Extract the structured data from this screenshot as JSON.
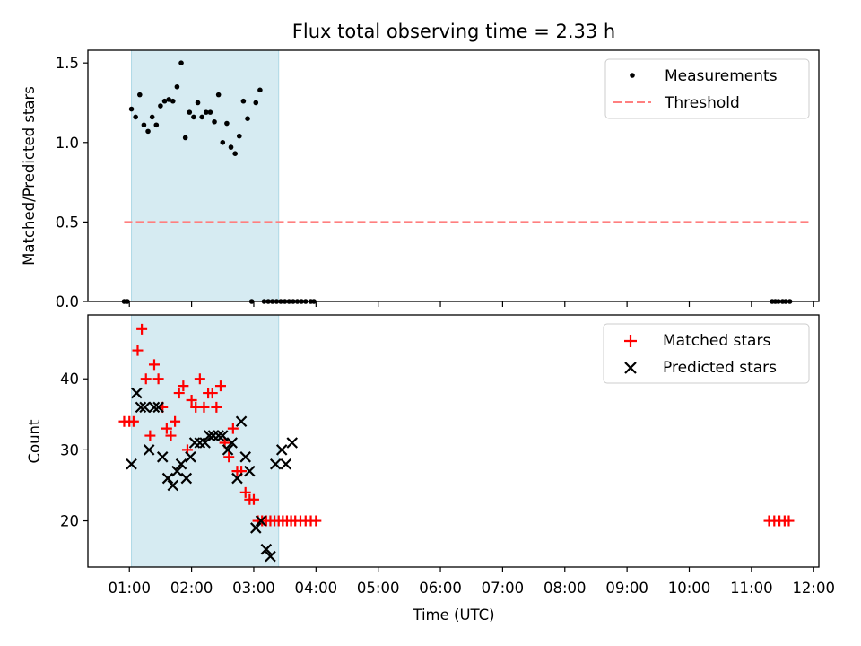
{
  "chart_data": [
    {
      "type": "scatter",
      "title": "Flux total observing time = 2.33 h",
      "xlabel": "",
      "ylabel": "Matched/Predicted stars",
      "xlim": [
        "00:20",
        "12:05"
      ],
      "ylim": [
        0,
        1.58
      ],
      "yticks": [
        "0.0",
        "0.5",
        "1.0",
        "1.5"
      ],
      "shaded_interval": [
        "01:02",
        "03:24"
      ],
      "legend": {
        "position": "top-right",
        "entries": [
          "Measurements",
          "Threshold"
        ]
      },
      "threshold": {
        "name": "Threshold",
        "value": 0.5,
        "x": [
          "00:55",
          "11:55"
        ]
      },
      "series": [
        {
          "name": "Measurements",
          "x": [
            "00:55",
            "00:58",
            "01:02",
            "01:06",
            "01:10",
            "01:14",
            "01:18",
            "01:22",
            "01:26",
            "01:30",
            "01:34",
            "01:38",
            "01:42",
            "01:46",
            "01:50",
            "01:54",
            "01:58",
            "02:02",
            "02:06",
            "02:10",
            "02:14",
            "02:18",
            "02:22",
            "02:26",
            "02:30",
            "02:34",
            "02:38",
            "02:42",
            "02:46",
            "02:50",
            "02:54",
            "02:58",
            "03:02",
            "03:06",
            "03:10",
            "03:14",
            "03:18",
            "03:22",
            "03:26",
            "03:30",
            "03:34",
            "03:38",
            "03:42",
            "03:46",
            "03:50",
            "03:55",
            "03:58",
            "11:20",
            "11:23",
            "11:26",
            "11:30",
            "11:33",
            "11:37"
          ],
          "y": [
            0,
            0,
            1.21,
            1.16,
            1.3,
            1.11,
            1.07,
            1.16,
            1.11,
            1.23,
            1.26,
            1.27,
            1.26,
            1.35,
            1.5,
            1.03,
            1.19,
            1.16,
            1.25,
            1.16,
            1.19,
            1.19,
            1.13,
            1.3,
            1,
            1.12,
            0.97,
            0.93,
            1.04,
            1.26,
            1.15,
            0,
            1.25,
            1.33,
            0,
            0,
            0,
            0,
            0,
            0,
            0,
            0,
            0,
            0,
            0,
            0,
            0,
            0,
            0,
            0,
            0,
            0,
            0
          ]
        }
      ]
    },
    {
      "type": "scatter",
      "title": "",
      "xlabel": "Time (UTC)",
      "ylabel": "Count",
      "xlim": [
        "00:20",
        "12:05"
      ],
      "ylim": [
        13.5,
        49
      ],
      "yticks": [
        "20",
        "30",
        "40"
      ],
      "xticks": [
        "01:00",
        "02:00",
        "03:00",
        "04:00",
        "05:00",
        "06:00",
        "07:00",
        "08:00",
        "09:00",
        "10:00",
        "11:00",
        "12:00"
      ],
      "shaded_interval": [
        "01:02",
        "03:24"
      ],
      "legend": {
        "position": "top-right",
        "entries": [
          "Matched stars",
          "Predicted stars"
        ]
      },
      "series": [
        {
          "name": "Matched stars",
          "color": "#ff0000",
          "marker": "plus",
          "x": [
            "00:55",
            "01:00",
            "01:04",
            "01:08",
            "01:12",
            "01:16",
            "01:20",
            "01:24",
            "01:28",
            "01:32",
            "01:36",
            "01:40",
            "01:44",
            "01:48",
            "01:52",
            "01:56",
            "02:00",
            "02:04",
            "02:08",
            "02:12",
            "02:16",
            "02:20",
            "02:24",
            "02:28",
            "02:32",
            "02:36",
            "02:40",
            "02:44",
            "02:48",
            "02:52",
            "02:56",
            "03:00",
            "03:04",
            "03:08",
            "03:12",
            "03:16",
            "03:20",
            "03:24",
            "03:28",
            "03:32",
            "03:36",
            "03:40",
            "03:45",
            "03:50",
            "03:55",
            "04:00",
            "11:17",
            "11:22",
            "11:27",
            "11:32",
            "11:36"
          ],
          "y": [
            34,
            34,
            34,
            44,
            47,
            40,
            32,
            42,
            40,
            36,
            33,
            32,
            34,
            38,
            39,
            30,
            37,
            36,
            40,
            36,
            38,
            38,
            36,
            39,
            31,
            29,
            33,
            27,
            27,
            24,
            23,
            23,
            20,
            20,
            20,
            20,
            20,
            20,
            20,
            20,
            20,
            20,
            20,
            20,
            20,
            20,
            20,
            20,
            20,
            20,
            20
          ]
        },
        {
          "name": "Predicted stars",
          "color": "#000000",
          "marker": "x",
          "x": [
            "01:02",
            "01:07",
            "01:11",
            "01:15",
            "01:19",
            "01:24",
            "01:28",
            "01:32",
            "01:37",
            "01:42",
            "01:46",
            "01:50",
            "01:55",
            "01:59",
            "02:03",
            "02:08",
            "02:13",
            "02:17",
            "02:21",
            "02:26",
            "02:30",
            "02:35",
            "02:39",
            "02:44",
            "02:48",
            "02:52",
            "02:56",
            "03:02",
            "03:07",
            "03:12",
            "03:16",
            "03:21",
            "03:27",
            "03:31",
            "03:37"
          ],
          "y": [
            28,
            38,
            36,
            36,
            30,
            36,
            36,
            29,
            26,
            25,
            27,
            28,
            26,
            29,
            31,
            31,
            31,
            32,
            32,
            32,
            32,
            30,
            31,
            26,
            34,
            29,
            27,
            19,
            20,
            16,
            15,
            28,
            30,
            28,
            31
          ]
        }
      ]
    }
  ]
}
